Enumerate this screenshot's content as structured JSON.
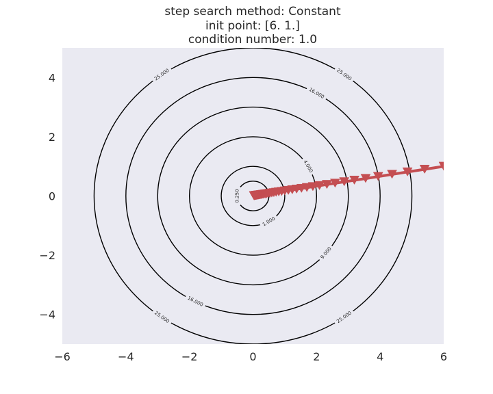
{
  "title_lines": [
    "step search method: Constant",
    "init point: [6. 1.]",
    "condition number: 1.0"
  ],
  "chart_data": {
    "type": "line",
    "title": "step search method: Constant\ninit point: [6. 1.]\ncondition number: 1.0",
    "xlabel": "",
    "ylabel": "",
    "xlim": [
      -6,
      6
    ],
    "ylim": [
      -5,
      5
    ],
    "xticks": [
      -6,
      -4,
      -2,
      0,
      2,
      4,
      6
    ],
    "yticks": [
      -4,
      -2,
      0,
      2,
      4
    ],
    "xtick_labels": [
      "−6",
      "−4",
      "−2",
      "0",
      "2",
      "4",
      "6"
    ],
    "ytick_labels": [
      "−4",
      "−2",
      "0",
      "2",
      "4"
    ],
    "grid": false,
    "background_color": "#eaeaf2",
    "contours": {
      "function": "x^2 + y^2",
      "color": "#000000",
      "levels": [
        0.25,
        1.0,
        4.0,
        9.0,
        16.0,
        25.0
      ],
      "labels": [
        {
          "text": "0.250",
          "level": 0.25,
          "angle_deg": 180
        },
        {
          "text": "1.000",
          "level": 1.0,
          "angle_deg": -60
        },
        {
          "text": "4.000",
          "level": 4.0,
          "angle_deg": 30
        },
        {
          "text": "9.000",
          "level": 9.0,
          "angle_deg": -40
        },
        {
          "text": "16.000",
          "level": 16.0,
          "angle_deg": 60
        },
        {
          "text": "16.000",
          "level": 16.0,
          "angle_deg": -117
        },
        {
          "text": "25.000",
          "level": 25.0,
          "angle_deg": 125
        },
        {
          "text": "25.000",
          "level": 25.0,
          "angle_deg": 55
        },
        {
          "text": "25.000",
          "level": 25.0,
          "angle_deg": -125
        },
        {
          "text": "25.000",
          "level": 25.0,
          "angle_deg": -55
        }
      ]
    },
    "series": [
      {
        "color": "#c44e52",
        "marker": "triangle-down",
        "x": [
          6.0,
          5.4,
          4.86,
          4.374,
          3.937,
          3.543,
          3.189,
          2.87,
          2.583,
          2.325,
          2.092,
          1.883,
          1.695,
          1.525,
          1.373,
          1.235,
          1.112,
          1.001,
          0.901,
          0.811,
          0.729,
          0.656,
          0.591,
          0.532,
          0.479,
          0.431,
          0.388,
          0.349,
          0.314,
          0.283,
          0.254,
          0.229,
          0.206,
          0.185,
          0.167,
          0.15,
          0.135,
          0.122,
          0.109,
          0.098,
          0.089,
          0.08,
          0.072,
          0.065,
          0.058,
          0.052,
          0.047,
          0.042,
          0.038,
          0.034,
          0.031
        ],
        "y": [
          1.0,
          0.9,
          0.81,
          0.729,
          0.656,
          0.59,
          0.531,
          0.478,
          0.43,
          0.387,
          0.349,
          0.314,
          0.282,
          0.254,
          0.229,
          0.206,
          0.185,
          0.167,
          0.15,
          0.135,
          0.122,
          0.109,
          0.098,
          0.089,
          0.08,
          0.072,
          0.065,
          0.058,
          0.052,
          0.047,
          0.042,
          0.038,
          0.034,
          0.031,
          0.028,
          0.025,
          0.023,
          0.02,
          0.018,
          0.016,
          0.015,
          0.013,
          0.012,
          0.011,
          0.01,
          0.009,
          0.008,
          0.007,
          0.006,
          0.006,
          0.005
        ]
      }
    ]
  }
}
